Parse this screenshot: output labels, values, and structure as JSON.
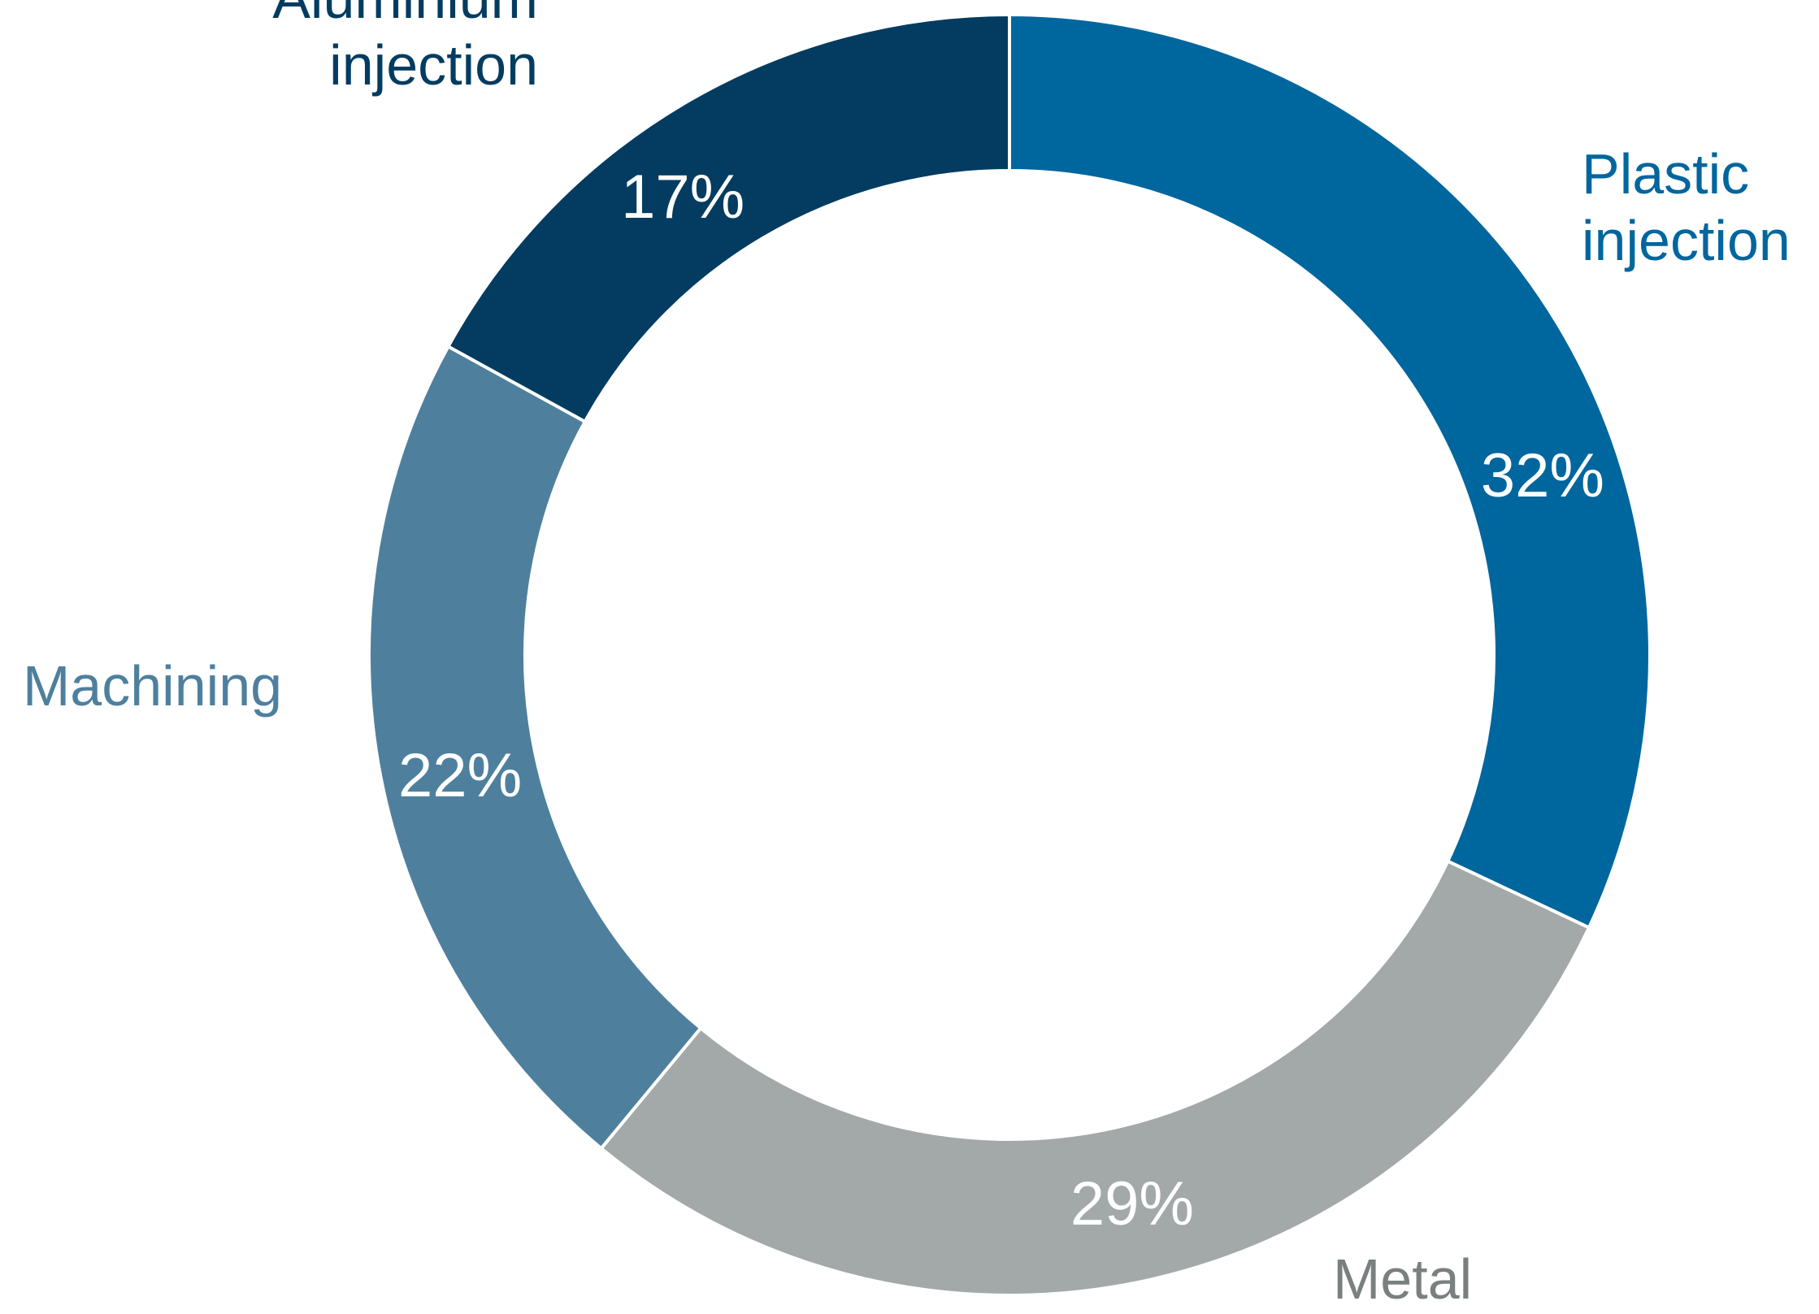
{
  "chart_data": {
    "type": "pie",
    "variant": "donut",
    "start_angle_deg": 0,
    "direction": "clockwise",
    "slices": [
      {
        "label_lines": [
          "Plastic",
          "injection"
        ],
        "value": 32,
        "value_label": "32%",
        "color": "#00669E",
        "label_color": "#00669E"
      },
      {
        "label_lines": [
          "Metal"
        ],
        "value": 29,
        "value_label": "29%",
        "color": "#A3A8A8",
        "label_color": "#7A7F80"
      },
      {
        "label_lines": [
          "Machining"
        ],
        "value": 22,
        "value_label": "22%",
        "color": "#4E809E",
        "label_color": "#4E809E"
      },
      {
        "label_lines": [
          "Aluminium",
          "injection"
        ],
        "value": 17,
        "value_label": "17%",
        "color": "#033C60",
        "label_color": "#033C60"
      }
    ]
  }
}
